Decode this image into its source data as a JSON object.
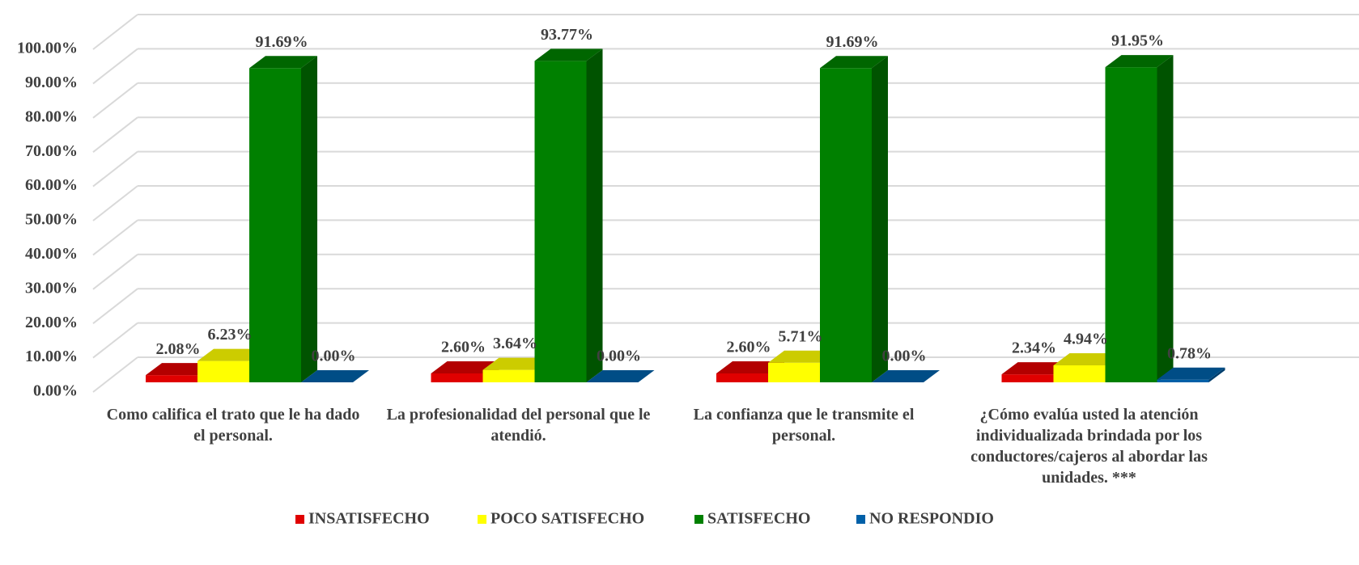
{
  "chart_data": {
    "type": "bar3d",
    "categories": [
      "Como califica el trato que le ha dado el personal.",
      "La profesionalidad del personal que le atendió.",
      "La confianza que le transmite el personal.",
      "¿Cómo evalúa usted la atención individualizada brindada por los conductores/cajeros al abordar las unidades. ***"
    ],
    "series": [
      {
        "name": "INSATISFECHO",
        "color": "#e00000",
        "values": [
          2.08,
          2.6,
          2.6,
          2.34
        ],
        "value_labels": [
          "2.08%",
          "2.60%",
          "2.60%",
          "2.34%"
        ]
      },
      {
        "name": "POCO SATISFECHO",
        "color": "#ffff00",
        "values": [
          6.23,
          3.64,
          5.71,
          4.94
        ],
        "value_labels": [
          "6.23%",
          "3.64%",
          "5.71%",
          "4.94%"
        ]
      },
      {
        "name": "SATISFECHO",
        "color": "#008000",
        "values": [
          91.69,
          93.77,
          91.69,
          91.95
        ],
        "value_labels": [
          "91.69%",
          "93.77%",
          "91.69%",
          "91.95%"
        ]
      },
      {
        "name": "NO RESPONDIO",
        "color": "#0060a8",
        "values": [
          0,
          0,
          0,
          0.78
        ],
        "value_labels": [
          "0.00%",
          "0.00%",
          "0.00%",
          "0.78%"
        ]
      }
    ],
    "ylim": [
      0,
      100
    ],
    "yticks": [
      {
        "value": 0,
        "label": "0.00%"
      },
      {
        "value": 10,
        "label": "10.00%"
      },
      {
        "value": 20,
        "label": "20.00%"
      },
      {
        "value": 30,
        "label": "30.00%"
      },
      {
        "value": 40,
        "label": "40.00%"
      },
      {
        "value": 50,
        "label": "50.00%"
      },
      {
        "value": 60,
        "label": "60.00%"
      },
      {
        "value": 70,
        "label": "70.00%"
      },
      {
        "value": 80,
        "label": "80.00%"
      },
      {
        "value": 90,
        "label": "90.00%"
      },
      {
        "value": 100,
        "label": "100.00%"
      }
    ],
    "grid": true,
    "legend": "bottom"
  }
}
